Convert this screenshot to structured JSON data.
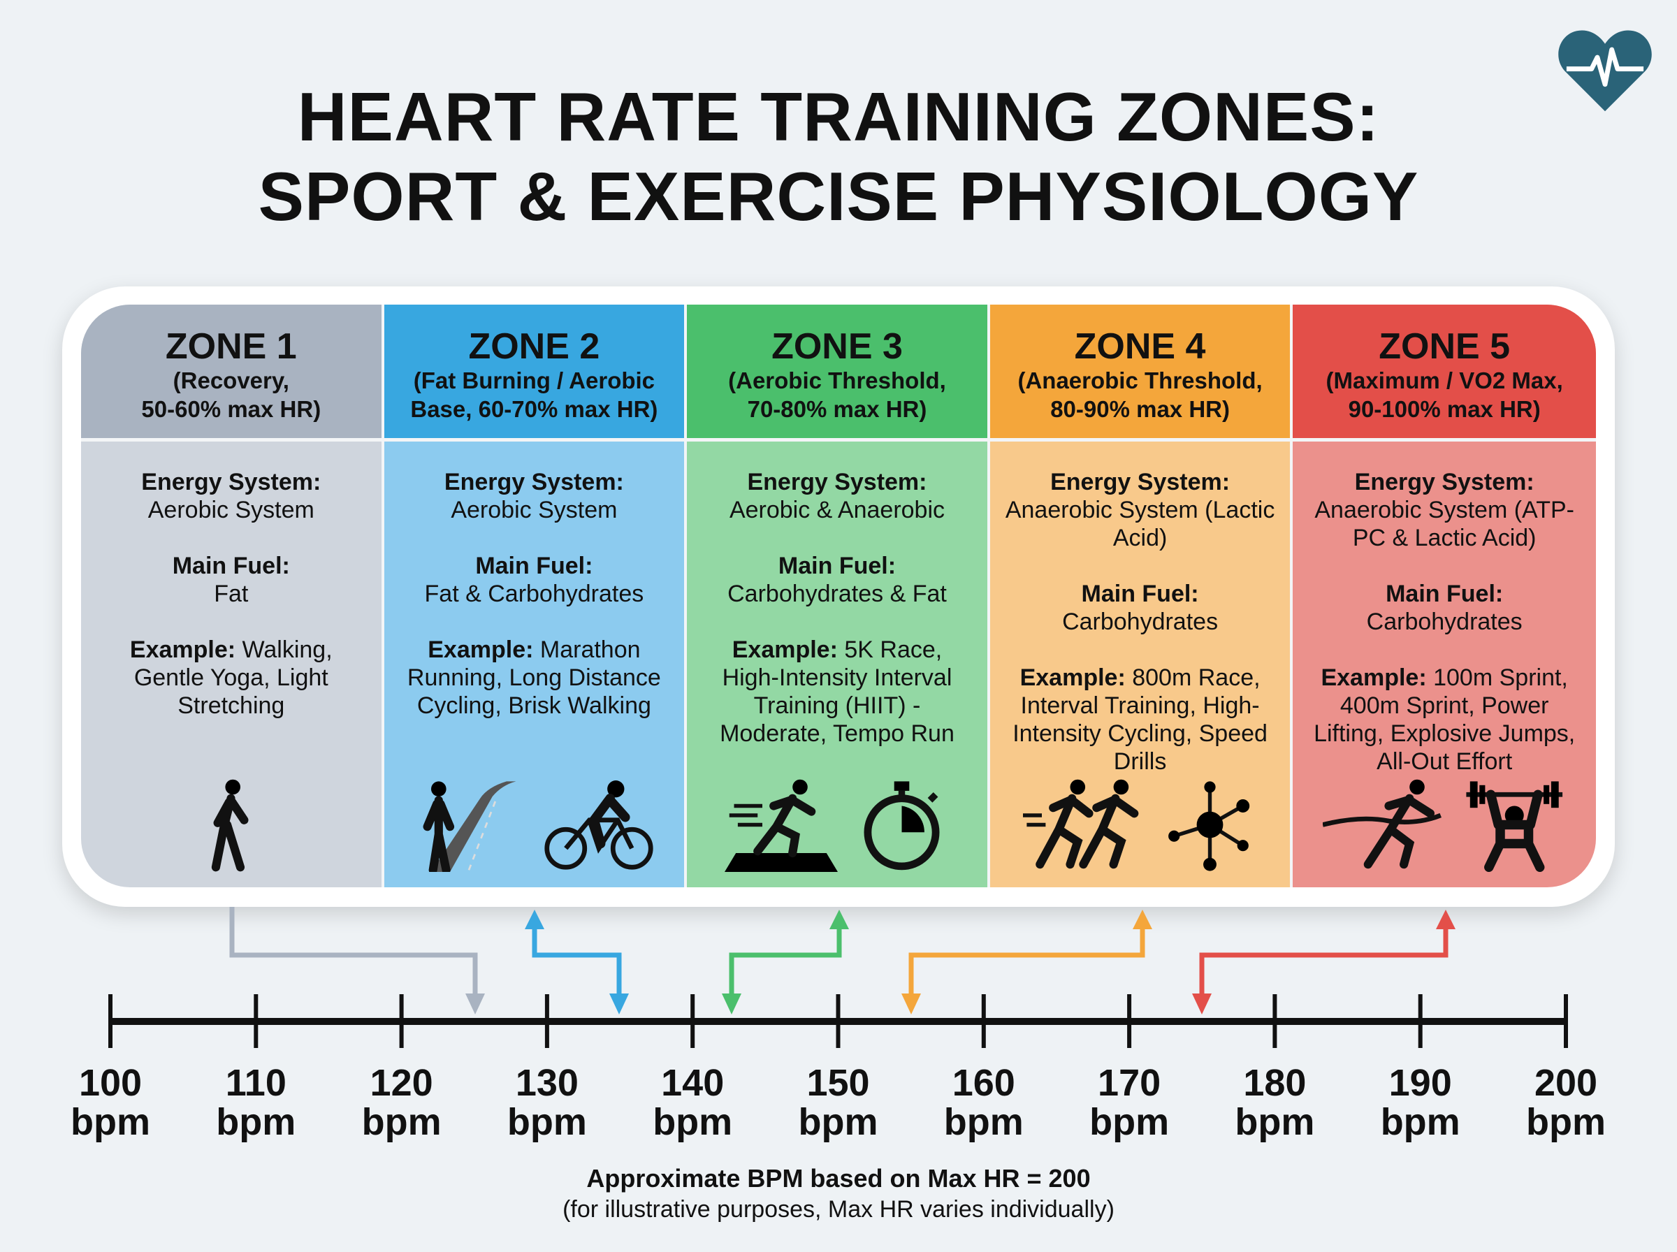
{
  "title": {
    "line1": "HEART RATE TRAINING ZONES:",
    "line2": "SPORT & EXERCISE PHYSIOLOGY"
  },
  "logo": {
    "icon": "heart-pulse-icon",
    "color": "#2a6378"
  },
  "zones": [
    {
      "name": "ZONE 1",
      "sub1": "(Recovery,",
      "sub2": "50-60% max HR)",
      "energy_label": "Energy System:",
      "energy": "Aerobic System",
      "fuel_label": "Main Fuel:",
      "fuel": "Fat",
      "example_label": "Example:",
      "example": "Walking, Gentle Yoga, Light Stretching",
      "icons": [
        "walking-person-icon"
      ],
      "header_color": "#a9b3c1",
      "body_color": "#cfd5dd"
    },
    {
      "name": "ZONE 2",
      "sub1": "(Fat Burning / Aerobic",
      "sub2": "Base, 60-70% max HR)",
      "energy_label": "Energy System:",
      "energy": "Aerobic System",
      "fuel_label": "Main Fuel:",
      "fuel": "Fat & Carbohydrates",
      "example_label": "Example:",
      "example": "Marathon Running, Long Distance Cycling, Brisk Walking",
      "icons": [
        "runner-road-icon",
        "cyclist-icon"
      ],
      "header_color": "#38a7e0",
      "body_color": "#8ccbef"
    },
    {
      "name": "ZONE 3",
      "sub1": "(Aerobic Threshold,",
      "sub2": "70-80% max HR)",
      "energy_label": "Energy System:",
      "energy": "Aerobic & Anaerobic",
      "fuel_label": "Main Fuel:",
      "fuel": "Carbohydrates & Fat",
      "example_label": "Example:",
      "example": "5K Race, High-Intensity Interval Training (HIIT) - Moderate, Tempo Run",
      "icons": [
        "sprinter-track-icon",
        "stopwatch-icon"
      ],
      "header_color": "#4bbf6c",
      "body_color": "#93d8a4"
    },
    {
      "name": "ZONE 4",
      "sub1": "(Anaerobic Threshold,",
      "sub2": "80-90% max HR)",
      "energy_label": "Energy System:",
      "energy": "Anaerobic System (Lactic Acid)",
      "fuel_label": "Main Fuel:",
      "fuel": "Carbohydrates",
      "example_label": "Example:",
      "example": "800m Race, Interval Training, High-Intensity Cycling, Speed Drills",
      "icons": [
        "two-runners-icon",
        "molecule-icon"
      ],
      "header_color": "#f4a63b",
      "body_color": "#f8c98b"
    },
    {
      "name": "ZONE 5",
      "sub1": "(Maximum / VO2 Max,",
      "sub2": "90-100% max HR)",
      "energy_label": "Energy System:",
      "energy": "Anaerobic System (ATP-PC & Lactic Acid)",
      "fuel_label": "Main Fuel:",
      "fuel": "Carbohydrates",
      "example_label": "Example:",
      "example": "100m Sprint, 400m Sprint, Power Lifting, Explosive Jumps, All-Out Effort",
      "icons": [
        "finish-line-sprinter-icon",
        "weightlifter-icon"
      ],
      "header_color": "#e34f49",
      "body_color": "#eb918c"
    }
  ],
  "timeline": {
    "min": 100,
    "max": 200,
    "ticks": [
      {
        "value": 100,
        "num": "100",
        "unit": "bpm"
      },
      {
        "value": 110,
        "num": "110",
        "unit": "bpm"
      },
      {
        "value": 120,
        "num": "120",
        "unit": "bpm"
      },
      {
        "value": 130,
        "num": "130",
        "unit": "bpm"
      },
      {
        "value": 140,
        "num": "140",
        "unit": "bpm"
      },
      {
        "value": 150,
        "num": "150",
        "unit": "bpm"
      },
      {
        "value": 160,
        "num": "160",
        "unit": "bpm"
      },
      {
        "value": 170,
        "num": "170",
        "unit": "bpm"
      },
      {
        "value": 180,
        "num": "180",
        "unit": "bpm"
      },
      {
        "value": 190,
        "num": "190",
        "unit": "bpm"
      },
      {
        "value": 200,
        "num": "200",
        "unit": "bpm"
      }
    ],
    "arrow_colors": [
      "#a9b3c1",
      "#38a7e0",
      "#4bbf6c",
      "#f4a63b",
      "#e34f49"
    ]
  },
  "footer": {
    "line1": "Approximate BPM based on Max HR = 200",
    "line2": "(for illustrative purposes, Max HR varies individually)"
  }
}
